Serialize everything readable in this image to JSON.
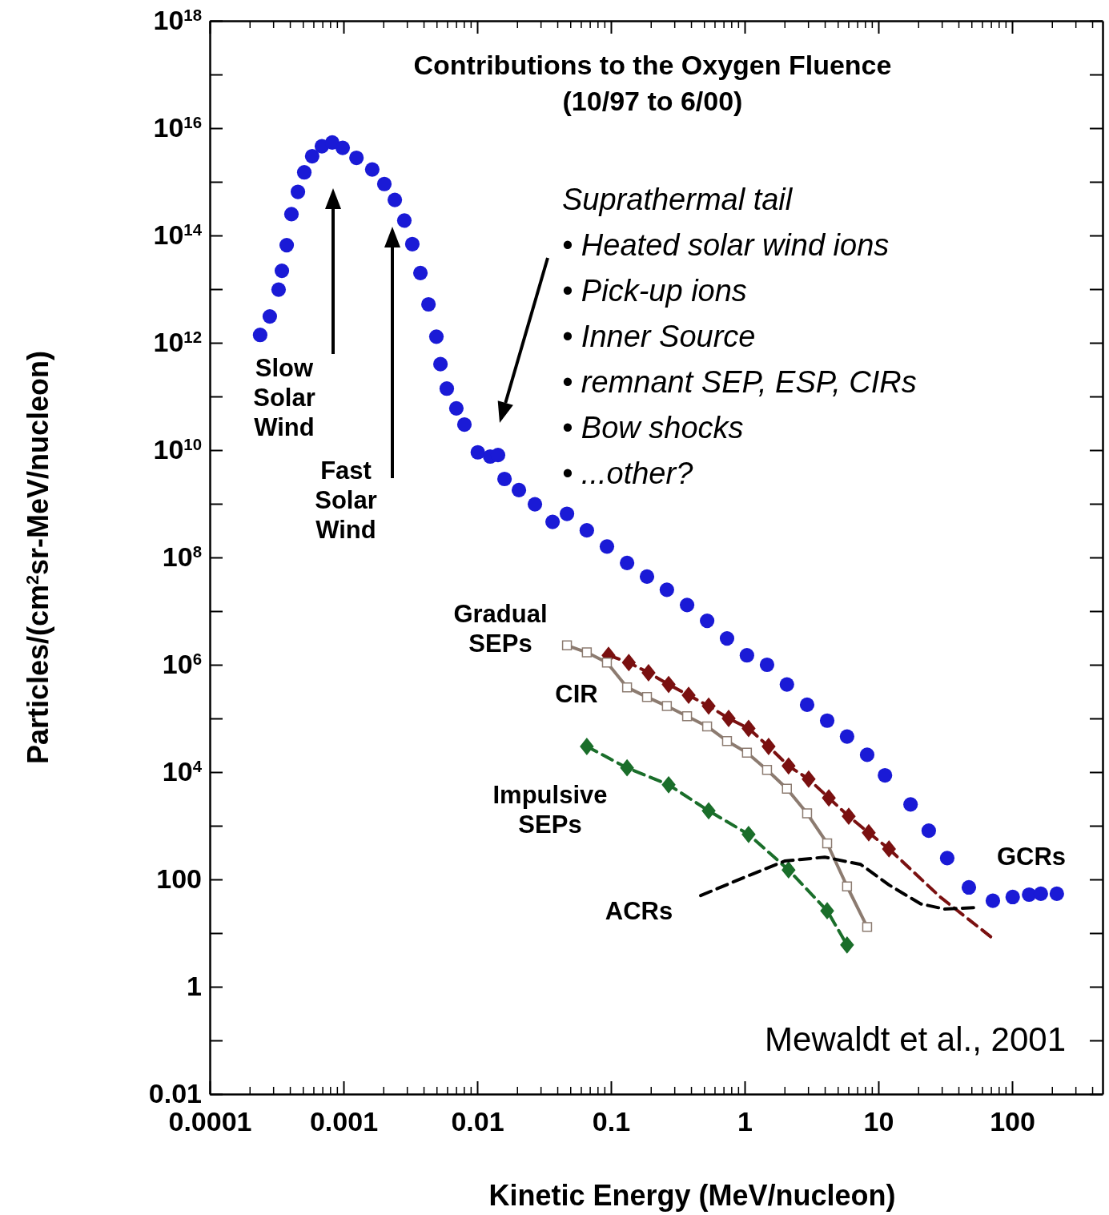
{
  "chart_data": {
    "type": "scatter",
    "title": "Contributions to the Oxygen Fluence",
    "subtitle": "(10/97 to 6/00)",
    "xlabel": "Kinetic Energy (MeV/nucleon)",
    "ylabel": "Particles/(cm$^{2}$sr-MeV/nucleon)",
    "log": "xy",
    "grid": false,
    "xlim": [
      0.0001,
      475
    ],
    "xticks": [
      0.0001,
      0.001,
      0.01,
      0.1,
      1,
      10,
      100
    ],
    "ylim": [
      0.01,
      1e+18
    ],
    "yticks": [
      0.01,
      {
        "value": 0.1,
        "label": null
      },
      1,
      {
        "value": 10,
        "label": null
      },
      100,
      {
        "value": 1000,
        "label": null
      },
      {
        "value": 10000,
        "label": "10$^{4}$"
      },
      {
        "value": 100000,
        "label": null
      },
      {
        "value": 1000000,
        "label": "10$^{6}$"
      },
      {
        "value": 10000000,
        "label": null
      },
      {
        "value": 100000000,
        "label": "10$^{8}$"
      },
      {
        "value": 1000000000,
        "label": null
      },
      {
        "value": 10000000000,
        "label": "10$^{10}$"
      },
      {
        "value": 100000000000,
        "label": null
      },
      {
        "value": 1000000000000,
        "label": "10$^{12}$"
      },
      {
        "value": 10000000000000,
        "label": null
      },
      {
        "value": 100000000000000,
        "label": "10$^{14}$"
      },
      {
        "value": 1000000000000000,
        "label": null
      },
      {
        "value": 10000000000000000,
        "label": "10$^{16}$"
      },
      {
        "value": 100000000000000000,
        "label": null
      },
      {
        "value": 1000000000000000000,
        "label": "10$^{18}$"
      }
    ],
    "series": [
      {
        "marker": "circle",
        "color": "#1a1ad6",
        "x": [
          0.000238,
          0.000281,
          0.000327,
          0.000346,
          0.000376,
          0.000408,
          0.000456,
          0.000509,
          0.000583,
          0.000689,
          0.000824,
          0.000986,
          0.00125,
          0.00164,
          0.00202,
          0.00242,
          0.00285,
          0.00327,
          0.00376,
          0.00432,
          0.00495,
          0.00531,
          0.00592,
          0.00698,
          0.00802,
          0.0101,
          0.0125,
          0.0143,
          0.016,
          0.0205,
          0.027,
          0.0366,
          0.0469,
          0.066,
          0.0933,
          0.132,
          0.186,
          0.262,
          0.371,
          0.524,
          0.738,
          1.04,
          1.47,
          2.07,
          2.93,
          4.14,
          5.83,
          8.24,
          11.2,
          17.4,
          23.8,
          32.7,
          47.5,
          71.8,
          101,
          134,
          164,
          216
        ],
        "values": [
          1400000000000.0,
          3100000000000.0,
          9800000000000.0,
          22000000000000.0,
          66000000000000.0,
          250000000000000.0,
          650000000000000.0,
          1500000000000000.0,
          3000000000000000.0,
          4600000000000000.0,
          5400000000000000.0,
          4300000000000000.0,
          2800000000000000.0,
          1700000000000000.0,
          910000000000000.0,
          460000000000000.0,
          190000000000000.0,
          69000000000000.0,
          20000000000000.0,
          5200000000000.0,
          1300000000000.0,
          400000000000.0,
          140000000000.0,
          60000000000.0,
          30000000000.0,
          9100000000.0,
          7600000000.0,
          8100000000.0,
          2900000000.0,
          1800000000.0,
          980000000.0,
          460000000.0,
          650000000.0,
          320000000.0,
          160000000.0,
          79000000.0,
          44000000.0,
          25000000.0,
          13000000.0,
          6600000.0,
          3100000.0,
          1500000.0,
          1000000.0,
          430000.0,
          180000.0,
          91000.0,
          46000.0,
          21000.0,
          8700,
          2500,
          810,
          250,
          71,
          40,
          47,
          52,
          54,
          54
        ]
      },
      {
        "type": "line",
        "marker": "diamond",
        "line_style": "dashed",
        "color": "#7a1010",
        "x": [
          0.0959,
          0.136,
          0.191,
          0.27,
          0.381,
          0.538,
          0.759,
          1.07,
          1.51,
          2.13,
          3.01,
          4.26,
          6.0,
          8.47,
          12.0
        ],
        "values": [
          1500000.0,
          1100000.0,
          710000.0,
          430000.0,
          270000.0,
          170000.0,
          100000.0,
          65000.0,
          30000.0,
          13000.0,
          7400,
          3300,
          1500,
          740,
          370
        ]
      },
      {
        "type": "line",
        "marker": "none",
        "line_style": "dashed",
        "color": "#7a1010",
        "x": [
          12.0,
          29,
          72
        ],
        "values": [
          370,
          47,
          7.9
        ]
      },
      {
        "type": "line",
        "marker": "square",
        "line_style": "solid",
        "color": "#8c7b70",
        "x": [
          0.0469,
          0.066,
          0.0933,
          0.132,
          0.186,
          0.262,
          0.371,
          0.524,
          0.738,
          1.04,
          1.47,
          2.07,
          2.93,
          4.14,
          5.83,
          8.24
        ],
        "values": [
          2300000.0,
          1700000.0,
          1100000.0,
          380000.0,
          250000.0,
          170000.0,
          110000.0,
          71000.0,
          38000.0,
          23000.0,
          11000.0,
          4900,
          1700,
          470,
          74,
          13
        ]
      },
      {
        "type": "line",
        "marker": "diamond",
        "line_style": "dashed",
        "color": "#1a6e2a",
        "x": [
          0.066,
          0.132,
          0.27,
          0.538,
          1.07,
          2.13,
          4.14,
          5.83
        ],
        "values": [
          30000.0,
          12000.0,
          5800,
          1900,
          690,
          150,
          26,
          6.0
        ]
      },
      {
        "type": "line",
        "marker": "none",
        "line_style": "dashed",
        "color": "#000000",
        "x": [
          0.469,
          1.0,
          1.99,
          3.97,
          7.38,
          12.0,
          20.7,
          31.4,
          54.6
        ],
        "values": [
          50,
          110,
          220,
          260,
          190,
          79,
          35,
          28,
          30
        ]
      }
    ],
    "annotations": [
      "Slow\nSolar\nWind",
      "Fast\nSolar\nWind",
      "Suprathermal tail\n•  Heated solar wind ions\n• Pick-up ions\n• Inner Source\n• remnant SEP, ESP, CIRs\n• Bow shocks\n• ...other?",
      "Gradual\nSEPs",
      "CIR",
      "Impulsive\nSEPs",
      "ACRs",
      "GCRs",
      "Mewaldt et al., 2001"
    ]
  }
}
